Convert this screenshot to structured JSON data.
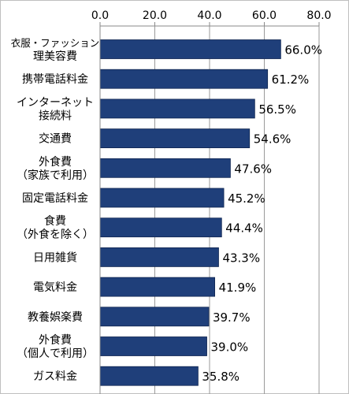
{
  "chart_data": {
    "type": "bar",
    "orientation": "horizontal",
    "categories": [
      [
        "衣服・ファッション",
        "理美容費"
      ],
      [
        "携帯電話料金"
      ],
      [
        "インターネット",
        "接続料"
      ],
      [
        "交通費"
      ],
      [
        "外食費",
        "（家族で利用）"
      ],
      [
        "固定電話料金"
      ],
      [
        "食費",
        "（外食を除く）"
      ],
      [
        "日用雑貨"
      ],
      [
        "電気料金"
      ],
      [
        "教養娯楽費"
      ],
      [
        "外食費",
        "（個人で利用）"
      ],
      [
        "ガス料金"
      ]
    ],
    "values": [
      66.0,
      61.2,
      56.5,
      54.6,
      47.6,
      45.2,
      44.4,
      43.3,
      41.9,
      39.7,
      39.0,
      35.8
    ],
    "value_labels": [
      "66.0%",
      "61.2%",
      "56.5%",
      "54.6%",
      "47.6%",
      "45.2%",
      "44.4%",
      "43.3%",
      "41.9%",
      "39.7%",
      "39.0%",
      "35.8%"
    ],
    "x_ticks": [
      "0.0",
      "20.0",
      "40.0",
      "60.0",
      "80.0"
    ],
    "xlim": [
      0,
      80
    ],
    "x_axis_position": "top",
    "grid": "vertical",
    "bar_color": "#1f3f7a",
    "grid_color": "#9a9a9a"
  }
}
